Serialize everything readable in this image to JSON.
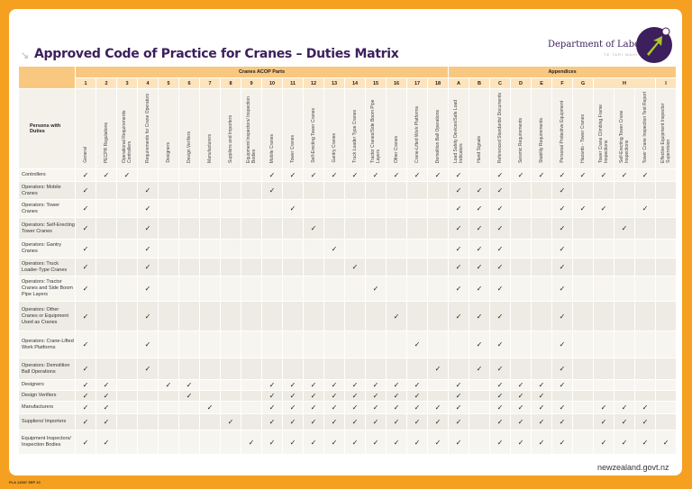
{
  "title": "Approved Code of Practice for Cranes – Duties Matrix",
  "logo": {
    "name": "Department of Labour",
    "tagline": "TE TARI MAHI"
  },
  "colors": {
    "background": "#f5a021",
    "header": "#f9c880",
    "title": "#3c1f5c",
    "logo_accent": "#a8c82a"
  },
  "groups": {
    "parts": "Cranes ACOP Parts",
    "appendices": "Appendices"
  },
  "corner_label": "Persons with Duties",
  "check_icon": "✓",
  "columns": [
    {
      "key": "1",
      "num": "1",
      "label": "General"
    },
    {
      "key": "2",
      "num": "2",
      "label": "PECPR Regulations"
    },
    {
      "key": "3",
      "num": "3",
      "label": "Operational Requirements Controllers"
    },
    {
      "key": "4",
      "num": "4",
      "label": "Requirements for Crane Operators"
    },
    {
      "key": "5",
      "num": "5",
      "label": "Designers"
    },
    {
      "key": "6",
      "num": "6",
      "label": "Design Verifiers"
    },
    {
      "key": "7",
      "num": "7",
      "label": "Manufacturers"
    },
    {
      "key": "8",
      "num": "8",
      "label": "Suppliers and Importers"
    },
    {
      "key": "9",
      "num": "9",
      "label": "Equipment Inspectors/ Inspection Bodies"
    },
    {
      "key": "10",
      "num": "10",
      "label": "Mobile Cranes"
    },
    {
      "key": "11",
      "num": "11",
      "label": "Tower Cranes"
    },
    {
      "key": "12",
      "num": "12",
      "label": "Self-Erecting Tower Cranes"
    },
    {
      "key": "13",
      "num": "13",
      "label": "Gantry Cranes"
    },
    {
      "key": "14",
      "num": "14",
      "label": "Truck Loader Type Cranes"
    },
    {
      "key": "15",
      "num": "15",
      "label": "Tractor Cranes/Side Boom Pipe Layers"
    },
    {
      "key": "16",
      "num": "16",
      "label": "Other Cranes"
    },
    {
      "key": "17",
      "num": "17",
      "label": "Crane-Lifted Work Platforms"
    },
    {
      "key": "18",
      "num": "18",
      "label": "Demolition Ball Operations"
    },
    {
      "key": "A",
      "num": "A",
      "label": "Load Safety Devices/Safe Load Indicators"
    },
    {
      "key": "B",
      "num": "B",
      "label": "Hand Signals"
    },
    {
      "key": "C",
      "num": "C",
      "label": "Referenced Standards/ Documents"
    },
    {
      "key": "D",
      "num": "D",
      "label": "Seismic Requirements"
    },
    {
      "key": "E",
      "num": "E",
      "label": "Stability Requirements"
    },
    {
      "key": "F",
      "num": "F",
      "label": "Personal Protective Equipment"
    },
    {
      "key": "G",
      "num": "G",
      "label": "Hazards - Tower Cranes"
    },
    {
      "key": "H1",
      "num": "H",
      "label": "Tower Crane Climbing Frame Inspections"
    },
    {
      "key": "H2",
      "num": "",
      "label": "Self-Erecting Tower Crane Inspections"
    },
    {
      "key": "H3",
      "num": "",
      "label": "Tower Crane Inspection Test Report"
    },
    {
      "key": "I",
      "num": "I",
      "label": "Effective Equipment Inspector Supervision"
    }
  ],
  "rows": [
    {
      "label": "Controllers",
      "checks": [
        "1",
        "2",
        "3",
        "10",
        "11",
        "12",
        "13",
        "14",
        "15",
        "16",
        "17",
        "18",
        "A",
        "C",
        "D",
        "E",
        "F",
        "G",
        "H1",
        "H2",
        "H3"
      ]
    },
    {
      "label": "Operators: Mobile Cranes",
      "checks": [
        "1",
        "4",
        "10",
        "A",
        "B",
        "C",
        "F"
      ]
    },
    {
      "label": "Operators: Tower Cranes",
      "checks": [
        "1",
        "4",
        "11",
        "A",
        "B",
        "C",
        "F",
        "G",
        "H1",
        "H3"
      ]
    },
    {
      "label": "Operators: Self-Erecting Tower Cranes",
      "checks": [
        "1",
        "4",
        "12",
        "A",
        "B",
        "C",
        "F",
        "H2"
      ]
    },
    {
      "label": "Operators: Gantry Cranes",
      "checks": [
        "1",
        "4",
        "13",
        "A",
        "B",
        "C",
        "F"
      ]
    },
    {
      "label": "Operators: Truck Loader-Type Cranes",
      "checks": [
        "1",
        "4",
        "14",
        "A",
        "B",
        "C",
        "F"
      ]
    },
    {
      "label": "Operators: Tractor Cranes and Side Boom Pipe Layers",
      "checks": [
        "1",
        "4",
        "15",
        "A",
        "B",
        "C",
        "F"
      ]
    },
    {
      "label": "Operators: Other Cranes or Equipment Used as Cranes",
      "checks": [
        "1",
        "4",
        "16",
        "A",
        "B",
        "C",
        "F"
      ]
    },
    {
      "label": "Operators: Crane-Lifted Work Platforms",
      "checks": [
        "1",
        "4",
        "17",
        "B",
        "C",
        "F"
      ]
    },
    {
      "label": "Operators: Demolition Ball Operations",
      "checks": [
        "1",
        "4",
        "18",
        "B",
        "C",
        "F"
      ]
    },
    {
      "label": "Designers",
      "checks": [
        "1",
        "2",
        "5",
        "6",
        "10",
        "11",
        "12",
        "13",
        "14",
        "15",
        "16",
        "17",
        "A",
        "C",
        "D",
        "E",
        "F"
      ]
    },
    {
      "label": "Design Verifiers",
      "checks": [
        "1",
        "2",
        "6",
        "10",
        "11",
        "12",
        "13",
        "14",
        "15",
        "16",
        "17",
        "A",
        "C",
        "D",
        "E"
      ]
    },
    {
      "label": "Manufacturers",
      "checks": [
        "1",
        "2",
        "7",
        "10",
        "11",
        "12",
        "13",
        "14",
        "15",
        "16",
        "17",
        "18",
        "A",
        "C",
        "D",
        "E",
        "F",
        "H1",
        "H2",
        "H3"
      ]
    },
    {
      "label": "Suppliers/ Importers",
      "checks": [
        "1",
        "2",
        "8",
        "10",
        "11",
        "12",
        "13",
        "14",
        "15",
        "16",
        "17",
        "18",
        "A",
        "C",
        "D",
        "E",
        "F",
        "H1",
        "H2",
        "H3"
      ]
    },
    {
      "label": "Equipment Inspectors/ Inspection Bodies",
      "checks": [
        "1",
        "2",
        "9",
        "10",
        "11",
        "12",
        "13",
        "14",
        "15",
        "16",
        "17",
        "18",
        "A",
        "C",
        "D",
        "E",
        "F",
        "H1",
        "H2",
        "H3",
        "I"
      ]
    }
  ],
  "footer": {
    "link": "newzealand.govt.nz",
    "code": "PLA 12087 SEP 10"
  }
}
